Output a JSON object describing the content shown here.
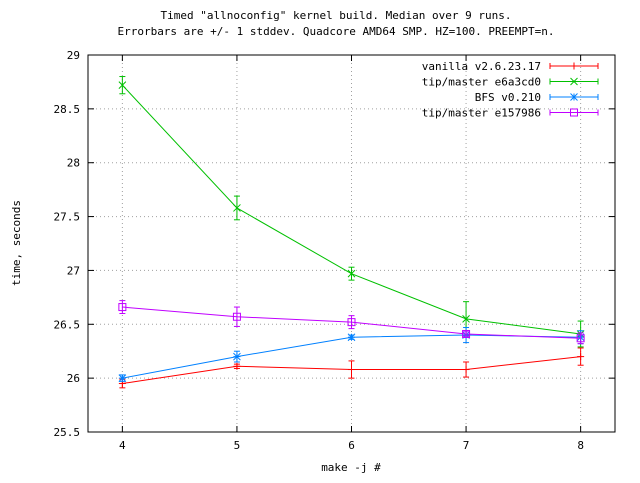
{
  "chart_data": {
    "type": "line",
    "title_lines": [
      "Timed \"allnoconfig\" kernel build. Median over 9 runs.",
      "Errorbars are +/- 1 stddev. Quadcore AMD64 SMP. HZ=100. PREEMPT=n."
    ],
    "xlabel": "make -j #",
    "ylabel": "time, seconds",
    "x": [
      4,
      5,
      6,
      7,
      8
    ],
    "xlim": [
      3.7,
      8.3
    ],
    "ylim": [
      25.5,
      29
    ],
    "xticks": [
      "4",
      "5",
      "6",
      "7",
      "8"
    ],
    "yticks": [
      "25.5",
      "26",
      "26.5",
      "27",
      "27.5",
      "28",
      "28.5",
      "29"
    ],
    "grid": true,
    "legend_position": "top-right",
    "series": [
      {
        "name": "vanilla v2.6.23.17",
        "color": "#ff0000",
        "marker": "plus",
        "values": [
          25.95,
          26.11,
          26.08,
          26.08,
          26.2
        ],
        "errors": [
          0.04,
          0.02,
          0.08,
          0.07,
          0.08
        ]
      },
      {
        "name": "tip/master e6a3cd0",
        "color": "#00c000",
        "marker": "cross",
        "values": [
          28.72,
          27.58,
          26.97,
          26.55,
          26.41
        ],
        "errors": [
          0.08,
          0.11,
          0.06,
          0.16,
          0.12
        ]
      },
      {
        "name": "BFS v0.210",
        "color": "#0080ff",
        "marker": "star",
        "values": [
          26.0,
          26.2,
          26.38,
          26.4,
          26.38
        ],
        "errors": [
          0.03,
          0.05,
          0.02,
          0.07,
          0.06
        ]
      },
      {
        "name": "tip/master e157986",
        "color": "#c000ff",
        "marker": "square",
        "values": [
          26.66,
          26.57,
          26.52,
          26.41,
          26.37
        ],
        "errors": [
          0.06,
          0.09,
          0.06,
          0.02,
          0.05
        ]
      }
    ]
  }
}
